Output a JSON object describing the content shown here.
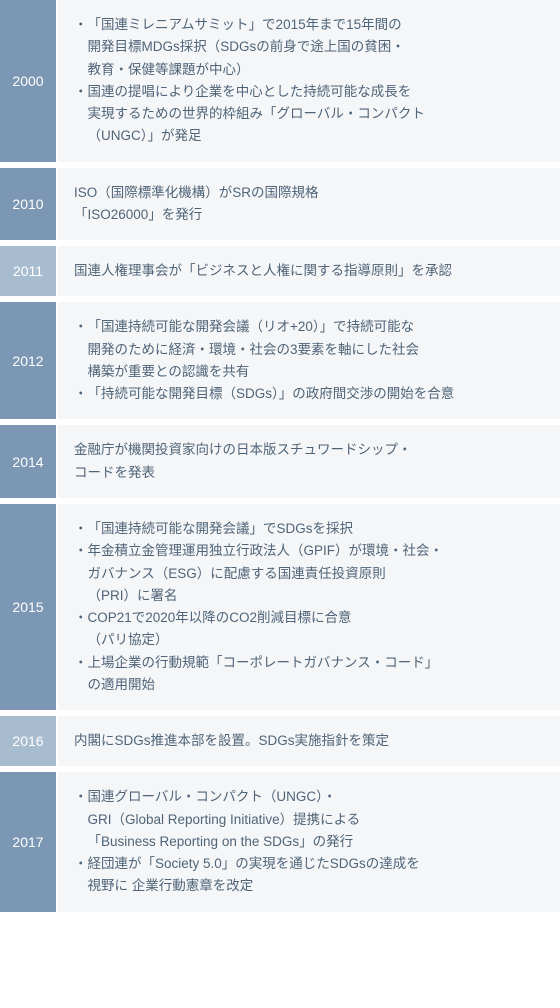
{
  "colors": {
    "year_bg_dark": "#7b97b3",
    "year_bg_light": "#a8bccf",
    "content_bg": "#f4f6f8",
    "text_color": "#506478",
    "year_text": "#ffffff"
  },
  "fonts": {
    "year_size": 14,
    "content_size": 13.5,
    "line_height": 1.65
  },
  "rows": [
    {
      "year": "2000",
      "year_shade": "dark",
      "content_lines": [
        {
          "bullet": true,
          "text": "「国連ミレニアムサミット」で2015年まで15年間の"
        },
        {
          "bullet": false,
          "indent": true,
          "text": "開発目標MDGs採択（SDGsの前身で途上国の貧困・"
        },
        {
          "bullet": false,
          "indent": true,
          "text": "教育・保健等課題が中心）"
        },
        {
          "bullet": true,
          "text": "国連の提唱により企業を中心とした持続可能な成長を"
        },
        {
          "bullet": false,
          "indent": true,
          "text": "実現するための世界的枠組み「グローバル・コンパクト"
        },
        {
          "bullet": false,
          "indent": true,
          "text": "（UNGC）」が発足"
        }
      ]
    },
    {
      "year": "2010",
      "year_shade": "dark",
      "content_lines": [
        {
          "bullet": false,
          "text": "ISO（国際標準化機構）がSRの国際規格"
        },
        {
          "bullet": false,
          "text": "「ISO26000」を発行"
        }
      ]
    },
    {
      "year": "2011",
      "year_shade": "light",
      "content_lines": [
        {
          "bullet": false,
          "text": "国連人権理事会が「ビジネスと人権に関する指導原則」を承認"
        }
      ]
    },
    {
      "year": "2012",
      "year_shade": "dark",
      "content_lines": [
        {
          "bullet": true,
          "text": "「国連持続可能な開発会議（リオ+20）」で持続可能な"
        },
        {
          "bullet": false,
          "indent": true,
          "text": "開発のために経済・環境・社会の3要素を軸にした社会"
        },
        {
          "bullet": false,
          "indent": true,
          "text": "構築が重要との認識を共有"
        },
        {
          "bullet": true,
          "text": "「持続可能な開発目標（SDGs）」の政府間交渉の開始を合意"
        }
      ]
    },
    {
      "year": "2014",
      "year_shade": "dark",
      "content_lines": [
        {
          "bullet": false,
          "text": "金融庁が機関投資家向けの日本版スチュワードシップ・"
        },
        {
          "bullet": false,
          "text": "コードを発表"
        }
      ]
    },
    {
      "year": "2015",
      "year_shade": "dark",
      "content_lines": [
        {
          "bullet": true,
          "text": "「国連持続可能な開発会議」でSDGsを採択"
        },
        {
          "bullet": true,
          "text": "年金積立金管理運用独立行政法人（GPIF）が環境・社会・"
        },
        {
          "bullet": false,
          "indent": true,
          "text": "ガバナンス（ESG）に配慮する国連責任投資原則"
        },
        {
          "bullet": false,
          "indent": true,
          "text": "（PRI）に署名"
        },
        {
          "bullet": true,
          "text": "COP21で2020年以降のCO2削減目標に合意"
        },
        {
          "bullet": false,
          "indent": true,
          "text": "（パリ協定）"
        },
        {
          "bullet": true,
          "text": "上場企業の行動規範「コーポレートガバナンス・コード」"
        },
        {
          "bullet": false,
          "indent": true,
          "text": "の適用開始"
        }
      ]
    },
    {
      "year": "2016",
      "year_shade": "light",
      "content_lines": [
        {
          "bullet": false,
          "text": "内閣にSDGs推進本部を設置。SDGs実施指針を策定"
        }
      ]
    },
    {
      "year": "2017",
      "year_shade": "dark",
      "content_lines": [
        {
          "bullet": true,
          "text": "国連グローバル・コンパクト（UNGC）・"
        },
        {
          "bullet": false,
          "indent": true,
          "text": "GRI（Global Reporting Initiative）提携による"
        },
        {
          "bullet": false,
          "indent": true,
          "text": "「Business Reporting on the SDGs」の発行"
        },
        {
          "bullet": true,
          "text": "経団連が「Society 5.0」の実現を通じたSDGsの達成を"
        },
        {
          "bullet": false,
          "indent": true,
          "text": "視野に 企業行動憲章を改定"
        }
      ]
    }
  ]
}
